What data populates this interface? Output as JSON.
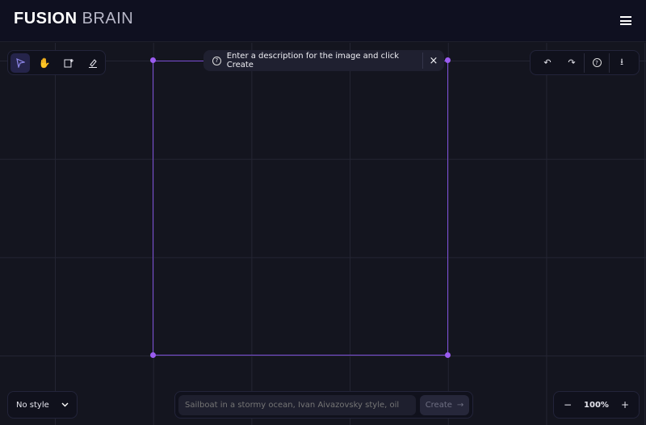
{
  "header": {
    "logo_bold": "FUSION",
    "logo_light": "BRAIN",
    "menu_icon": "hamburger-icon"
  },
  "toolbar": {
    "tools": [
      {
        "name": "select",
        "icon": "cursor-icon",
        "active": true
      },
      {
        "name": "hand",
        "icon": "hand-icon"
      },
      {
        "name": "add-image",
        "icon": "image-plus-icon"
      },
      {
        "name": "eraser",
        "icon": "eraser-icon"
      }
    ]
  },
  "actions": {
    "undo": "undo-icon",
    "redo": "redo-icon",
    "help": "help-icon",
    "download": "download-icon"
  },
  "tooltip": {
    "text": "Enter a description for the image and click Create",
    "close": "×"
  },
  "style_select": {
    "value": "No style"
  },
  "prompt": {
    "placeholder": "Sailboat in a stormy ocean, Ivan Aivazovsky style, oil",
    "create_label": "Create",
    "arrow": "→"
  },
  "zoom": {
    "minus": "−",
    "value": "100%",
    "plus": "+"
  },
  "colors": {
    "accent": "#9b5cf0",
    "background": "#14151f"
  }
}
